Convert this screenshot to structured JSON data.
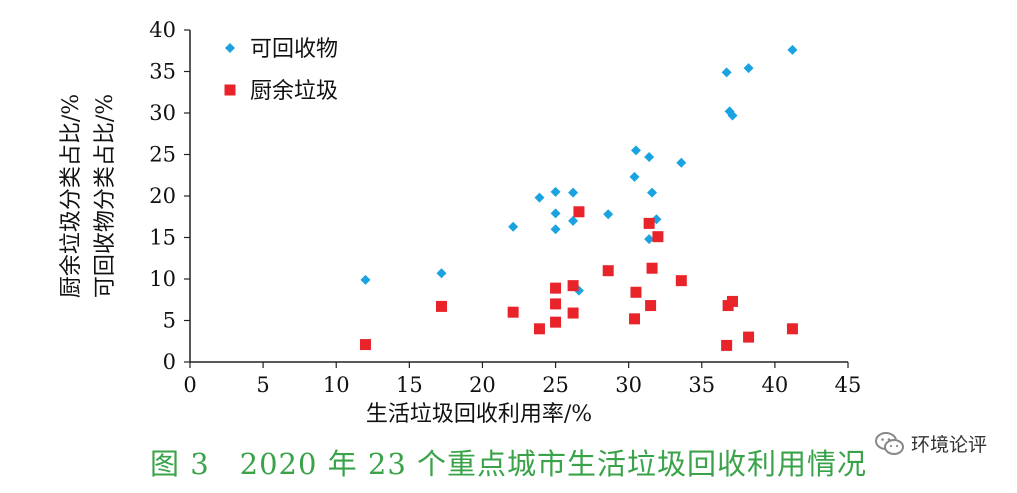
{
  "caption": "图 3　2020 年 23 个重点城市生活垃圾回收利用情况",
  "watermark": {
    "text": "环境论评",
    "icon": "wechat-icon"
  },
  "colors": {
    "recyclable": "#1aa3e0",
    "kitchen": "#e8232a",
    "caption": "#3aa34a",
    "axis": "#222222"
  },
  "chart_data": {
    "type": "scatter",
    "xlabel": "生活垃圾回收利用率/%",
    "ylabel_lines": [
      "厨余垃圾分类占比/%",
      "可回收物分类占比/%"
    ],
    "xlim": [
      0,
      45
    ],
    "ylim": [
      0,
      40
    ],
    "x_ticks": [
      0,
      5,
      10,
      15,
      20,
      25,
      30,
      35,
      40,
      45
    ],
    "y_ticks": [
      0,
      5,
      10,
      15,
      20,
      25,
      30,
      35,
      40
    ],
    "grid": false,
    "legend_position": "top-left",
    "series": [
      {
        "name": "可回收物",
        "marker": "diamond",
        "color": "#1aa3e0",
        "points": [
          [
            12.0,
            9.9
          ],
          [
            17.2,
            10.7
          ],
          [
            22.1,
            16.3
          ],
          [
            23.9,
            19.8
          ],
          [
            25.0,
            20.5
          ],
          [
            25.0,
            17.9
          ],
          [
            25.0,
            16.0
          ],
          [
            26.2,
            20.4
          ],
          [
            26.2,
            17.0
          ],
          [
            26.6,
            8.6
          ],
          [
            28.6,
            17.8
          ],
          [
            30.5,
            25.5
          ],
          [
            30.4,
            22.3
          ],
          [
            31.4,
            24.7
          ],
          [
            31.6,
            20.4
          ],
          [
            31.4,
            14.8
          ],
          [
            31.9,
            17.2
          ],
          [
            33.6,
            24.0
          ],
          [
            36.7,
            34.9
          ],
          [
            36.9,
            30.2
          ],
          [
            37.1,
            29.7
          ],
          [
            38.2,
            35.4
          ],
          [
            41.2,
            37.6
          ]
        ]
      },
      {
        "name": "厨余垃圾",
        "marker": "square",
        "color": "#e8232a",
        "points": [
          [
            12.0,
            2.1
          ],
          [
            17.2,
            6.7
          ],
          [
            22.1,
            6.0
          ],
          [
            23.9,
            4.0
          ],
          [
            25.0,
            8.9
          ],
          [
            25.0,
            7.0
          ],
          [
            25.0,
            4.8
          ],
          [
            26.2,
            9.2
          ],
          [
            26.2,
            5.9
          ],
          [
            26.6,
            18.1
          ],
          [
            28.6,
            11.0
          ],
          [
            30.5,
            8.4
          ],
          [
            30.4,
            5.2
          ],
          [
            31.4,
            16.7
          ],
          [
            31.6,
            11.3
          ],
          [
            31.5,
            6.8
          ],
          [
            32.0,
            15.1
          ],
          [
            33.6,
            9.8
          ],
          [
            36.7,
            2.0
          ],
          [
            36.8,
            6.8
          ],
          [
            37.1,
            7.3
          ],
          [
            38.2,
            3.0
          ],
          [
            41.2,
            4.0
          ]
        ]
      }
    ]
  }
}
